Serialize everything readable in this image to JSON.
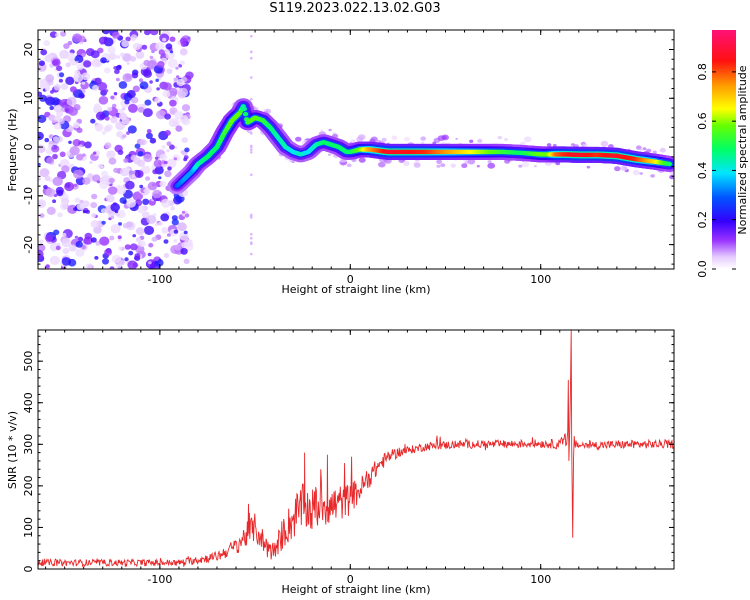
{
  "title": "S119.2023.022.13.02.G03",
  "chart_data": [
    {
      "type": "heatmap",
      "xlabel": "Height of straight line (km)",
      "ylabel": "Frequency (Hz)",
      "xlim": [
        -164,
        170
      ],
      "ylim": [
        -25,
        24
      ],
      "xticks": [
        -100,
        0,
        100
      ],
      "yticks": [
        -20,
        -10,
        0,
        10,
        20
      ],
      "xtick_labels": [
        "-100",
        "0",
        "100"
      ],
      "ytick_labels": [
        "-20",
        "-10",
        "0",
        "10",
        "20"
      ],
      "colorbar": {
        "label": "Normalized spectral amplitude",
        "range": [
          0,
          0.97
        ],
        "ticks": [
          0.0,
          0.2,
          0.4,
          0.6,
          0.8
        ],
        "tick_labels": [
          "0.0",
          "0.2",
          "0.4",
          "0.6",
          "0.8"
        ],
        "colormap": "rainbow (white, violet, blue, cyan, green, yellow, orange, red, magenta)"
      },
      "noise_region_x": [
        -164,
        -84
      ],
      "ridge": {
        "x": [
          -91,
          -87,
          -83,
          -80,
          -75,
          -70,
          -66,
          -62,
          -58,
          -56,
          -54,
          -50,
          -46,
          -42,
          -38,
          -34,
          -30,
          -26,
          -22,
          -18,
          -14,
          -10,
          -6,
          -2,
          0,
          5,
          10,
          20,
          40,
          60,
          80,
          90,
          100,
          104,
          108,
          112,
          120,
          130,
          140,
          150,
          160,
          168
        ],
        "y": [
          -8,
          -6.5,
          -5,
          -3.5,
          -2,
          0,
          3,
          5.5,
          7,
          8.5,
          5,
          6,
          5.5,
          4,
          2,
          0,
          -1,
          -1.5,
          -1,
          0.5,
          1,
          0.5,
          0,
          -1,
          -1,
          -0.5,
          -0.5,
          -1,
          -1,
          -1,
          -1,
          -1.2,
          -1.5,
          -1.5,
          -1.5,
          -1.5,
          -1.6,
          -1.6,
          -1.8,
          -2.5,
          -3,
          -3.5
        ],
        "amplitude": [
          0.3,
          0.35,
          0.35,
          0.45,
          0.5,
          0.5,
          0.55,
          0.6,
          0.6,
          0.45,
          0.55,
          0.6,
          0.55,
          0.5,
          0.45,
          0.45,
          0.4,
          0.45,
          0.4,
          0.45,
          0.5,
          0.5,
          0.5,
          0.5,
          0.5,
          0.6,
          0.75,
          0.9,
          0.85,
          0.7,
          0.55,
          0.5,
          0.6,
          0.6,
          0.8,
          0.85,
          0.9,
          0.85,
          0.9,
          0.85,
          0.7,
          0.5
        ]
      }
    },
    {
      "type": "line",
      "xlabel": "Height of straight line (km)",
      "ylabel": "SNR (10 * v/v)",
      "xlim": [
        -164,
        170
      ],
      "ylim": [
        0,
        575
      ],
      "xticks": [
        -100,
        0,
        100
      ],
      "yticks": [
        0,
        100,
        200,
        300,
        400,
        500
      ],
      "xtick_labels": [
        "-100",
        "0",
        "100"
      ],
      "ytick_labels": [
        "0",
        "100",
        "200",
        "300",
        "400",
        "500"
      ],
      "color": "#e8282a",
      "series": [
        {
          "x": [
            -164,
            -120,
            -90,
            -80,
            -70,
            -60,
            -55,
            -50,
            -45,
            -40,
            -35,
            -30,
            -25,
            -20,
            -15,
            -10,
            -5,
            0,
            5,
            10,
            15,
            20,
            25,
            30,
            40,
            50,
            60,
            80,
            100,
            110,
            114,
            115,
            116,
            117,
            118,
            120,
            130,
            150,
            170
          ],
          "y": [
            15,
            15,
            15,
            22,
            30,
            55,
            80,
            100,
            60,
            40,
            90,
            120,
            150,
            140,
            160,
            150,
            160,
            170,
            190,
            220,
            250,
            270,
            280,
            285,
            295,
            298,
            300,
            300,
            302,
            300,
            310,
            560,
            80,
            300,
            300,
            298,
            298,
            300,
            300
          ],
          "noise": [
            8,
            8,
            8,
            10,
            12,
            20,
            30,
            35,
            30,
            25,
            40,
            50,
            55,
            55,
            55,
            50,
            45,
            40,
            30,
            25,
            20,
            15,
            12,
            10,
            10,
            10,
            10,
            10,
            10,
            12,
            25,
            0,
            0,
            15,
            10,
            10,
            10,
            10,
            10
          ],
          "spikes": [
            {
              "x": 114.5,
              "y": 455
            },
            {
              "x": 116,
              "y": 575
            },
            {
              "x": 116.8,
              "y": 75
            },
            {
              "x": -24,
              "y": 280
            },
            {
              "x": -12,
              "y": 275
            },
            {
              "x": -3,
              "y": 255
            },
            {
              "x": -53,
              "y": 135
            }
          ]
        }
      ]
    }
  ]
}
